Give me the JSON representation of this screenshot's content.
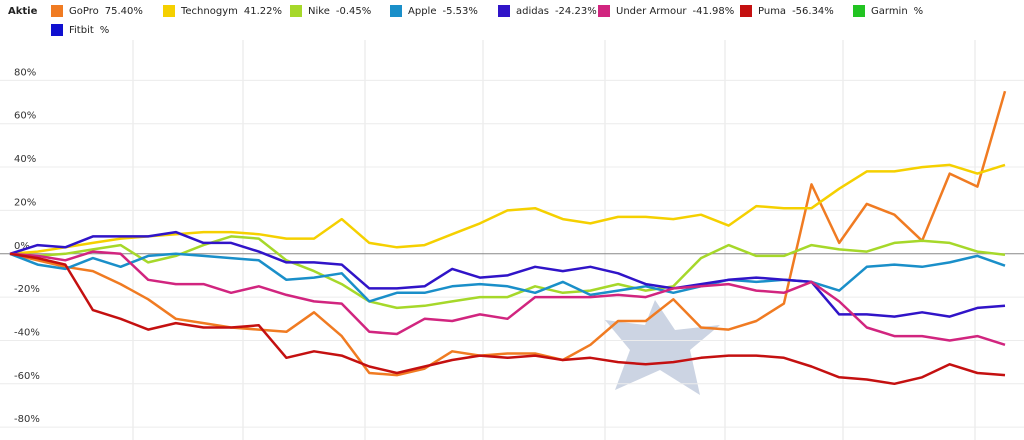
{
  "chart_data": {
    "type": "line",
    "legend_title": "Aktie",
    "ylim": [
      -85,
      100
    ],
    "yticks": [
      {
        "value": -80,
        "label": "-80%"
      },
      {
        "value": -60,
        "label": "-60%"
      },
      {
        "value": -40,
        "label": "-40%"
      },
      {
        "value": -20,
        "label": "-20%"
      },
      {
        "value": 0,
        "label": "0%"
      },
      {
        "value": 20,
        "label": "20%"
      },
      {
        "value": 40,
        "label": "40%"
      },
      {
        "value": 60,
        "label": "60%"
      },
      {
        "value": 80,
        "label": "80%"
      }
    ],
    "grid": true,
    "series": [
      {
        "name": "GoPro",
        "legend_value": "75.40%",
        "color": "#f07b22",
        "values": [
          0,
          -3,
          -6,
          -8,
          -14,
          -21,
          -30,
          -32,
          -34,
          -35,
          -36,
          -27,
          -38,
          -55,
          -56,
          -53,
          -45,
          -47,
          -46,
          -46,
          -49,
          -42,
          -31,
          -31,
          -21,
          -34,
          -35,
          -31,
          -23,
          32,
          5,
          23,
          18,
          6,
          37,
          31,
          75
        ]
      },
      {
        "name": "Technogym",
        "legend_value": "41.22%",
        "color": "#f5d000",
        "values": [
          0,
          1,
          3,
          5,
          7,
          8,
          9,
          10,
          10,
          9,
          7,
          7,
          16,
          5,
          3,
          4,
          9,
          14,
          20,
          21,
          16,
          14,
          17,
          17,
          16,
          18,
          13,
          22,
          21,
          21,
          30,
          38,
          38,
          40,
          41,
          37,
          41
        ]
      },
      {
        "name": "Nike",
        "legend_value": "-0.45%",
        "color": "#a6d82a",
        "values": [
          0,
          -1,
          0,
          2,
          4,
          -4,
          -1,
          4,
          8,
          7,
          -3,
          -8,
          -14,
          -22,
          -25,
          -24,
          -22,
          -20,
          -20,
          -15,
          -18,
          -17,
          -14,
          -17,
          -15,
          -2,
          4,
          -1,
          -1,
          4,
          2,
          1,
          5,
          6,
          5,
          1,
          -0.45
        ]
      },
      {
        "name": "Apple",
        "legend_value": "-5.53%",
        "color": "#1a8fc9",
        "values": [
          0,
          -5,
          -7,
          -2,
          -6,
          -1,
          0,
          -1,
          -2,
          -3,
          -12,
          -11,
          -9,
          -22,
          -18,
          -18,
          -15,
          -14,
          -15,
          -18,
          -13,
          -19,
          -17,
          -15,
          -18,
          -15,
          -12,
          -13,
          -12,
          -13,
          -17,
          -6,
          -5,
          -6,
          -4,
          -1,
          -5.5
        ]
      },
      {
        "name": "adidas",
        "legend_value": "-24.23%",
        "color": "#3014c8",
        "values": [
          0,
          4,
          3,
          8,
          8,
          8,
          10,
          5,
          5,
          1,
          -4,
          -4,
          -5,
          -16,
          -16,
          -15,
          -7,
          -11,
          -10,
          -6,
          -8,
          -6,
          -9,
          -14,
          -16,
          -14,
          -12,
          -11,
          -12,
          -13,
          -28,
          -28,
          -29,
          -27,
          -29,
          -25,
          -24
        ]
      },
      {
        "name": "Under Armour",
        "legend_value": "-41.98%",
        "color": "#d1257f",
        "values": [
          0,
          -1,
          -3,
          1,
          0,
          -12,
          -14,
          -14,
          -18,
          -15,
          -19,
          -22,
          -23,
          -36,
          -37,
          -30,
          -31,
          -28,
          -30,
          -20,
          -20,
          -20,
          -19,
          -20,
          -16,
          -15,
          -14,
          -17,
          -18,
          -13,
          -22,
          -34,
          -38,
          -38,
          -40,
          -38,
          -42
        ]
      },
      {
        "name": "Puma",
        "legend_value": "-56.34%",
        "color": "#c41010",
        "values": [
          0,
          -2,
          -5,
          -26,
          -30,
          -35,
          -32,
          -34,
          -34,
          -33,
          -48,
          -45,
          -47,
          -52,
          -55,
          -52,
          -49,
          -47,
          -48,
          -47,
          -49,
          -48,
          -50,
          -51,
          -50,
          -48,
          -47,
          -47,
          -48,
          -52,
          -57,
          -58,
          -60,
          -57,
          -51,
          -55,
          -56
        ]
      },
      {
        "name": "Garmin",
        "legend_value": "%",
        "color": "#22c422"
      },
      {
        "name": "Fitbit",
        "legend_value": "%",
        "color": "#1010d0"
      }
    ]
  }
}
